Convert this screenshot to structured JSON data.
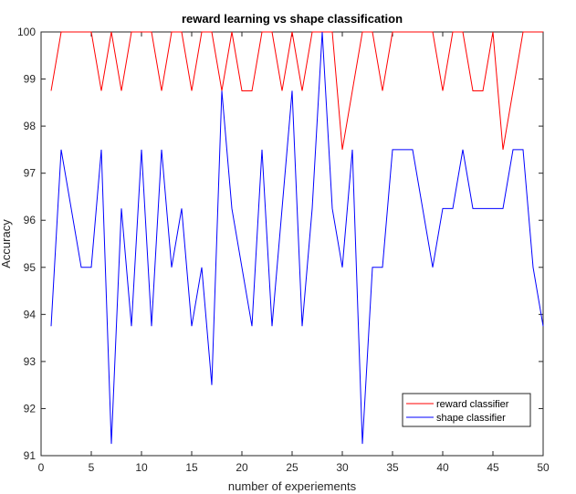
{
  "chart_data": {
    "type": "line",
    "title": "reward learning vs shape classification",
    "xlabel": "number of experiements",
    "ylabel": "Accuracy",
    "xlim": [
      0,
      50
    ],
    "ylim": [
      91,
      100
    ],
    "xticks": [
      0,
      5,
      10,
      15,
      20,
      25,
      30,
      35,
      40,
      45,
      50
    ],
    "yticks": [
      91,
      92,
      93,
      94,
      95,
      96,
      97,
      98,
      99,
      100
    ],
    "grid": false,
    "legend_position": "bottom-right",
    "x": [
      1,
      2,
      3,
      4,
      5,
      6,
      7,
      8,
      9,
      10,
      11,
      12,
      13,
      14,
      15,
      16,
      17,
      18,
      19,
      20,
      21,
      22,
      23,
      24,
      25,
      26,
      27,
      28,
      29,
      30,
      31,
      32,
      33,
      34,
      35,
      36,
      37,
      38,
      39,
      40,
      41,
      42,
      43,
      44,
      45,
      46,
      47,
      48,
      49,
      50
    ],
    "series": [
      {
        "name": "reward classifier",
        "color": "#ff0000",
        "values": [
          98.75,
          100,
          100,
          100,
          100,
          98.75,
          100,
          98.75,
          100,
          100,
          100,
          98.75,
          100,
          100,
          98.75,
          100,
          100,
          98.75,
          100,
          98.75,
          98.75,
          100,
          100,
          98.75,
          100,
          98.75,
          100,
          100,
          100,
          97.5,
          98.75,
          100,
          100,
          98.75,
          100,
          100,
          100,
          100,
          100,
          98.75,
          100,
          100,
          98.75,
          98.75,
          100,
          97.5,
          98.75,
          100,
          100,
          100
        ]
      },
      {
        "name": "shape classifier",
        "color": "#0000ff",
        "values": [
          93.75,
          97.5,
          96.25,
          95,
          95,
          97.5,
          91.25,
          96.25,
          93.75,
          97.5,
          93.75,
          97.5,
          95,
          96.25,
          93.75,
          95,
          92.5,
          98.75,
          96.25,
          95,
          93.75,
          97.5,
          93.75,
          96.25,
          98.75,
          93.75,
          96.25,
          100,
          96.25,
          95,
          97.5,
          91.25,
          95,
          95,
          97.5,
          97.5,
          97.5,
          96.25,
          95,
          96.25,
          96.25,
          97.5,
          96.25,
          96.25,
          96.25,
          96.25,
          97.5,
          97.5,
          95,
          93.75
        ]
      }
    ]
  }
}
